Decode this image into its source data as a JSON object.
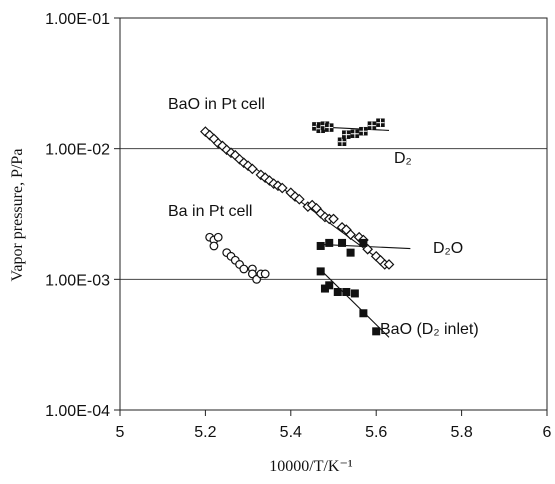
{
  "chart_data": {
    "type": "scatter",
    "title": "",
    "xlabel": "10000/T/K⁻¹",
    "ylabel": "Vapor pressure, P/Pa",
    "xlim": [
      5,
      6
    ],
    "ylim": [
      0.0001,
      0.1
    ],
    "yscale": "log",
    "grid": "horizontal gridlines at each decade",
    "x_ticks": [
      5,
      5.2,
      5.4,
      5.6,
      5.8,
      6
    ],
    "x_tick_labels": [
      "5",
      "5.2",
      "5.4",
      "5.6",
      "5.8",
      "6"
    ],
    "y_ticks": [
      0.1,
      0.01,
      0.001,
      0.0001
    ],
    "y_tick_labels": [
      "1.00E-01",
      "1.00E-02",
      "1.00E-03",
      "1.00E-04"
    ],
    "series": [
      {
        "label": "BaO in Pt cell",
        "marker": "open-diamond",
        "points": [
          [
            5.2,
            0.0135
          ],
          [
            5.21,
            0.0127
          ],
          [
            5.22,
            0.0119
          ],
          [
            5.23,
            0.011
          ],
          [
            5.24,
            0.0105
          ],
          [
            5.25,
            0.0098
          ],
          [
            5.26,
            0.0093
          ],
          [
            5.27,
            0.0089
          ],
          [
            5.28,
            0.0083
          ],
          [
            5.29,
            0.0078
          ],
          [
            5.3,
            0.0074
          ],
          [
            5.31,
            0.007
          ],
          [
            5.33,
            0.0063
          ],
          [
            5.34,
            0.006
          ],
          [
            5.35,
            0.0057
          ],
          [
            5.36,
            0.0054
          ],
          [
            5.37,
            0.0052
          ],
          [
            5.38,
            0.005
          ],
          [
            5.4,
            0.0046
          ],
          [
            5.41,
            0.0043
          ],
          [
            5.42,
            0.0041
          ],
          [
            5.44,
            0.0036
          ],
          [
            5.45,
            0.0037
          ],
          [
            5.46,
            0.0035
          ],
          [
            5.47,
            0.0032
          ],
          [
            5.48,
            0.003
          ],
          [
            5.49,
            0.0029
          ],
          [
            5.5,
            0.0029
          ],
          [
            5.52,
            0.0025
          ],
          [
            5.53,
            0.0024
          ],
          [
            5.54,
            0.0022
          ],
          [
            5.56,
            0.0021
          ],
          [
            5.57,
            0.002
          ],
          [
            5.58,
            0.0017
          ],
          [
            5.6,
            0.0015
          ],
          [
            5.61,
            0.0014
          ],
          [
            5.62,
            0.0013
          ],
          [
            5.63,
            0.0013
          ]
        ],
        "fit": [
          [
            5.2,
            0.0135
          ],
          [
            5.63,
            0.00125
          ]
        ]
      },
      {
        "label": "D2",
        "marker": "dotted-square",
        "points": [
          [
            5.46,
            0.0148
          ],
          [
            5.47,
            0.0142
          ],
          [
            5.48,
            0.015
          ],
          [
            5.49,
            0.0145
          ],
          [
            5.52,
            0.0113
          ],
          [
            5.53,
            0.0128
          ],
          [
            5.55,
            0.013
          ],
          [
            5.57,
            0.0136
          ],
          [
            5.59,
            0.015
          ],
          [
            5.61,
            0.0158
          ]
        ],
        "fit": [
          [
            5.46,
            0.0147
          ],
          [
            5.63,
            0.0138
          ]
        ]
      },
      {
        "label": "D2O",
        "marker": "filled-square",
        "points": [
          [
            5.47,
            0.0018
          ],
          [
            5.49,
            0.0019
          ],
          [
            5.52,
            0.0019
          ],
          [
            5.54,
            0.0016
          ],
          [
            5.57,
            0.0019
          ]
        ],
        "fit": [
          [
            5.47,
            0.00185
          ],
          [
            5.68,
            0.00172
          ]
        ]
      },
      {
        "label": "BaO (D2 inlet)",
        "marker": "filled-square",
        "points": [
          [
            5.47,
            0.00115
          ],
          [
            5.48,
            0.00085
          ],
          [
            5.49,
            0.0009
          ],
          [
            5.51,
            0.0008
          ],
          [
            5.53,
            0.0008
          ],
          [
            5.55,
            0.00078
          ],
          [
            5.57,
            0.00055
          ],
          [
            5.6,
            0.0004
          ]
        ],
        "fit": [
          [
            5.47,
            0.00118
          ],
          [
            5.63,
            0.00036
          ]
        ]
      },
      {
        "label": "Ba in Pt cell",
        "marker": "open-circle",
        "points": [
          [
            5.21,
            0.0021
          ],
          [
            5.22,
            0.002
          ],
          [
            5.23,
            0.0021
          ],
          [
            5.22,
            0.0018
          ],
          [
            5.25,
            0.0016
          ],
          [
            5.26,
            0.0015
          ],
          [
            5.27,
            0.0014
          ],
          [
            5.28,
            0.0013
          ],
          [
            5.29,
            0.0012
          ],
          [
            5.31,
            0.0012
          ],
          [
            5.31,
            0.0011
          ],
          [
            5.32,
            0.001
          ],
          [
            5.33,
            0.0011
          ],
          [
            5.34,
            0.0011
          ]
        ]
      }
    ],
    "annotations": {
      "bao_pt": "BaO in Pt cell",
      "d2": "D₂",
      "ba_pt": "Ba in Pt cell",
      "d2o": "D₂O",
      "bao_d2": "BaO (D₂ inlet)"
    }
  }
}
